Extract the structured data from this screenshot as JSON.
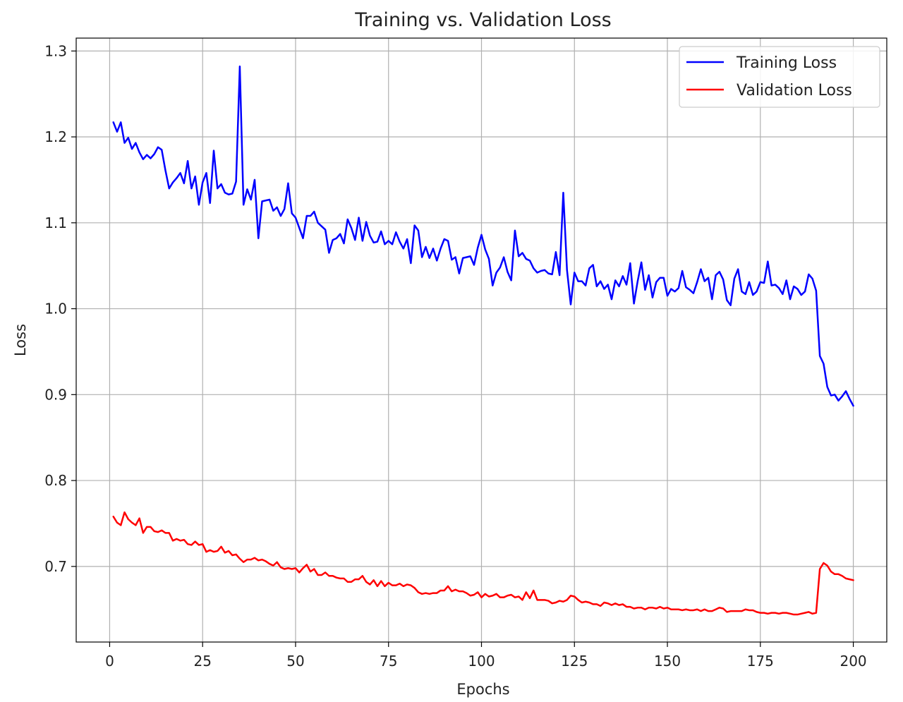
{
  "chart_data": {
    "type": "line",
    "title": "Training vs. Validation Loss",
    "xlabel": "Epochs",
    "ylabel": "Loss",
    "xlim": [
      -9,
      209
    ],
    "ylim": [
      0.612,
      1.315
    ],
    "xticks": [
      0,
      25,
      50,
      75,
      100,
      125,
      150,
      175,
      200
    ],
    "yticks": [
      0.7,
      0.8,
      0.9,
      1.0,
      1.1,
      1.2,
      1.3
    ],
    "ytick_labels": [
      "0.7",
      "0.8",
      "0.9",
      "1.0",
      "1.1",
      "1.2",
      "1.3"
    ],
    "grid": true,
    "legend_position": "top-right",
    "x_start": 1,
    "series": [
      {
        "name": "Training Loss",
        "color": "#0000ff",
        "values": [
          1.217,
          1.206,
          1.217,
          1.193,
          1.199,
          1.186,
          1.193,
          1.182,
          1.174,
          1.179,
          1.175,
          1.18,
          1.188,
          1.185,
          1.161,
          1.14,
          1.147,
          1.152,
          1.158,
          1.146,
          1.172,
          1.14,
          1.154,
          1.121,
          1.147,
          1.158,
          1.123,
          1.184,
          1.14,
          1.145,
          1.135,
          1.133,
          1.134,
          1.148,
          1.282,
          1.121,
          1.139,
          1.127,
          1.15,
          1.082,
          1.125,
          1.126,
          1.127,
          1.114,
          1.118,
          1.108,
          1.116,
          1.146,
          1.111,
          1.106,
          1.094,
          1.082,
          1.108,
          1.108,
          1.113,
          1.1,
          1.096,
          1.092,
          1.065,
          1.08,
          1.082,
          1.087,
          1.076,
          1.104,
          1.094,
          1.08,
          1.106,
          1.079,
          1.101,
          1.085,
          1.077,
          1.078,
          1.09,
          1.075,
          1.079,
          1.075,
          1.089,
          1.078,
          1.07,
          1.081,
          1.053,
          1.097,
          1.091,
          1.06,
          1.072,
          1.059,
          1.07,
          1.056,
          1.07,
          1.081,
          1.079,
          1.057,
          1.06,
          1.041,
          1.059,
          1.06,
          1.061,
          1.051,
          1.071,
          1.086,
          1.069,
          1.058,
          1.027,
          1.042,
          1.048,
          1.06,
          1.043,
          1.033,
          1.091,
          1.061,
          1.065,
          1.058,
          1.056,
          1.047,
          1.042,
          1.044,
          1.045,
          1.041,
          1.04,
          1.066,
          1.039,
          1.135,
          1.045,
          1.005,
          1.042,
          1.032,
          1.032,
          1.027,
          1.047,
          1.051,
          1.026,
          1.032,
          1.023,
          1.028,
          1.011,
          1.033,
          1.026,
          1.038,
          1.028,
          1.053,
          1.006,
          1.032,
          1.054,
          1.022,
          1.039,
          1.013,
          1.031,
          1.036,
          1.036,
          1.015,
          1.023,
          1.02,
          1.024,
          1.044,
          1.025,
          1.022,
          1.018,
          1.031,
          1.046,
          1.032,
          1.036,
          1.011,
          1.039,
          1.043,
          1.034,
          1.01,
          1.004,
          1.035,
          1.046,
          1.02,
          1.017,
          1.031,
          1.016,
          1.02,
          1.031,
          1.03,
          1.055,
          1.027,
          1.028,
          1.024,
          1.017,
          1.033,
          1.011,
          1.026,
          1.023,
          1.016,
          1.02,
          1.04,
          1.035,
          1.021,
          0.945,
          0.936,
          0.909,
          0.899,
          0.9,
          0.893,
          0.898,
          0.904,
          0.895,
          0.887
        ]
      },
      {
        "name": "Validation Loss",
        "color": "#ff0000",
        "values": [
          0.758,
          0.751,
          0.748,
          0.763,
          0.755,
          0.751,
          0.748,
          0.756,
          0.739,
          0.746,
          0.746,
          0.741,
          0.74,
          0.742,
          0.739,
          0.739,
          0.73,
          0.732,
          0.73,
          0.731,
          0.726,
          0.725,
          0.729,
          0.725,
          0.726,
          0.717,
          0.719,
          0.717,
          0.718,
          0.723,
          0.716,
          0.718,
          0.713,
          0.714,
          0.709,
          0.705,
          0.708,
          0.708,
          0.71,
          0.707,
          0.708,
          0.706,
          0.703,
          0.701,
          0.705,
          0.699,
          0.697,
          0.698,
          0.697,
          0.698,
          0.693,
          0.698,
          0.702,
          0.694,
          0.697,
          0.69,
          0.69,
          0.693,
          0.689,
          0.689,
          0.687,
          0.686,
          0.686,
          0.682,
          0.682,
          0.685,
          0.685,
          0.689,
          0.682,
          0.679,
          0.684,
          0.677,
          0.683,
          0.677,
          0.681,
          0.678,
          0.678,
          0.68,
          0.677,
          0.679,
          0.678,
          0.675,
          0.67,
          0.668,
          0.669,
          0.668,
          0.669,
          0.669,
          0.672,
          0.672,
          0.677,
          0.671,
          0.673,
          0.671,
          0.671,
          0.669,
          0.666,
          0.667,
          0.67,
          0.664,
          0.668,
          0.665,
          0.666,
          0.668,
          0.664,
          0.664,
          0.666,
          0.667,
          0.664,
          0.665,
          0.661,
          0.67,
          0.663,
          0.672,
          0.661,
          0.661,
          0.661,
          0.66,
          0.657,
          0.658,
          0.66,
          0.659,
          0.661,
          0.666,
          0.665,
          0.661,
          0.658,
          0.659,
          0.658,
          0.656,
          0.656,
          0.654,
          0.658,
          0.657,
          0.655,
          0.657,
          0.655,
          0.656,
          0.653,
          0.653,
          0.651,
          0.652,
          0.652,
          0.65,
          0.652,
          0.652,
          0.651,
          0.653,
          0.651,
          0.652,
          0.65,
          0.65,
          0.65,
          0.649,
          0.65,
          0.649,
          0.649,
          0.65,
          0.648,
          0.65,
          0.648,
          0.648,
          0.65,
          0.652,
          0.651,
          0.647,
          0.648,
          0.648,
          0.648,
          0.648,
          0.65,
          0.649,
          0.649,
          0.647,
          0.646,
          0.646,
          0.645,
          0.646,
          0.646,
          0.645,
          0.646,
          0.646,
          0.645,
          0.644,
          0.644,
          0.645,
          0.646,
          0.647,
          0.645,
          0.646,
          0.697,
          0.704,
          0.701,
          0.694,
          0.691,
          0.691,
          0.689,
          0.686,
          0.685,
          0.684
        ]
      }
    ]
  }
}
